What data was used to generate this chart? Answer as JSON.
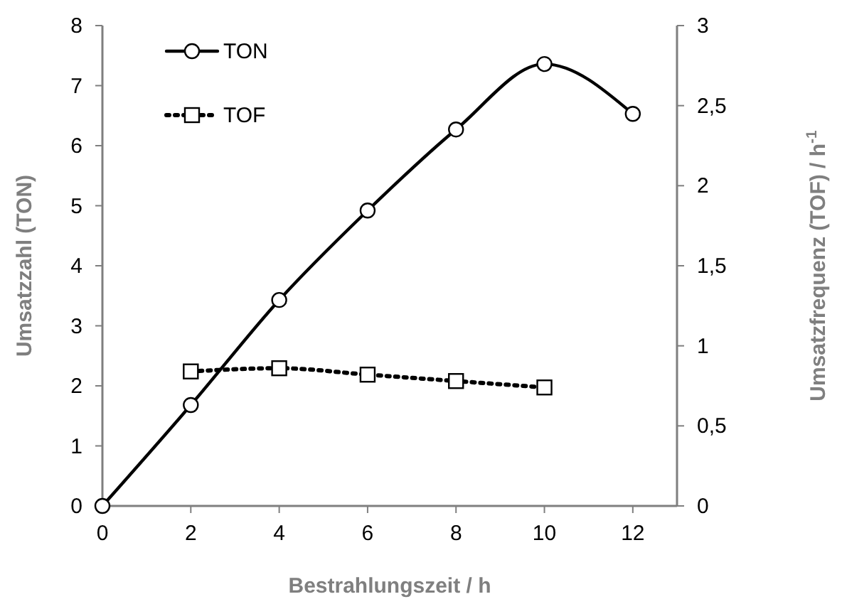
{
  "chart_data": {
    "type": "line",
    "xlabel": "Bestrahlungszeit / h",
    "ylabel": "Umsatzzahl (TON)",
    "y2label": "Umsatzfrequenz (TOF) / h$^{-1}$",
    "xlim": [
      0,
      13
    ],
    "xticks": [
      0,
      2,
      4,
      6,
      8,
      10,
      12
    ],
    "ylim": [
      0,
      8
    ],
    "yticks": [
      0,
      1,
      2,
      3,
      4,
      5,
      6,
      7,
      8
    ],
    "y2lim": [
      0,
      3
    ],
    "y2ticks": [
      0,
      {
        "value": 0.5,
        "label": "0,5"
      },
      1,
      {
        "value": 1.5,
        "label": "1,5"
      },
      2,
      {
        "value": 2.5,
        "label": "2,5"
      },
      3
    ],
    "grid": false,
    "legend": "top left",
    "series": [
      {
        "name": "TON",
        "color": "#000000",
        "marker": "circle",
        "line_style": "solid",
        "x": [
          0,
          2,
          4,
          6,
          8,
          10,
          12
        ],
        "values": [
          0,
          1.68,
          3.43,
          4.92,
          6.27,
          7.36,
          6.53
        ]
      },
      {
        "name": "TOF",
        "color": "#000000",
        "marker": "square",
        "line_style": "dotted",
        "axis": "y2",
        "x": [
          2,
          4,
          6,
          8,
          10
        ],
        "values": [
          0.84,
          0.86,
          0.82,
          0.78,
          0.74
        ]
      }
    ]
  }
}
